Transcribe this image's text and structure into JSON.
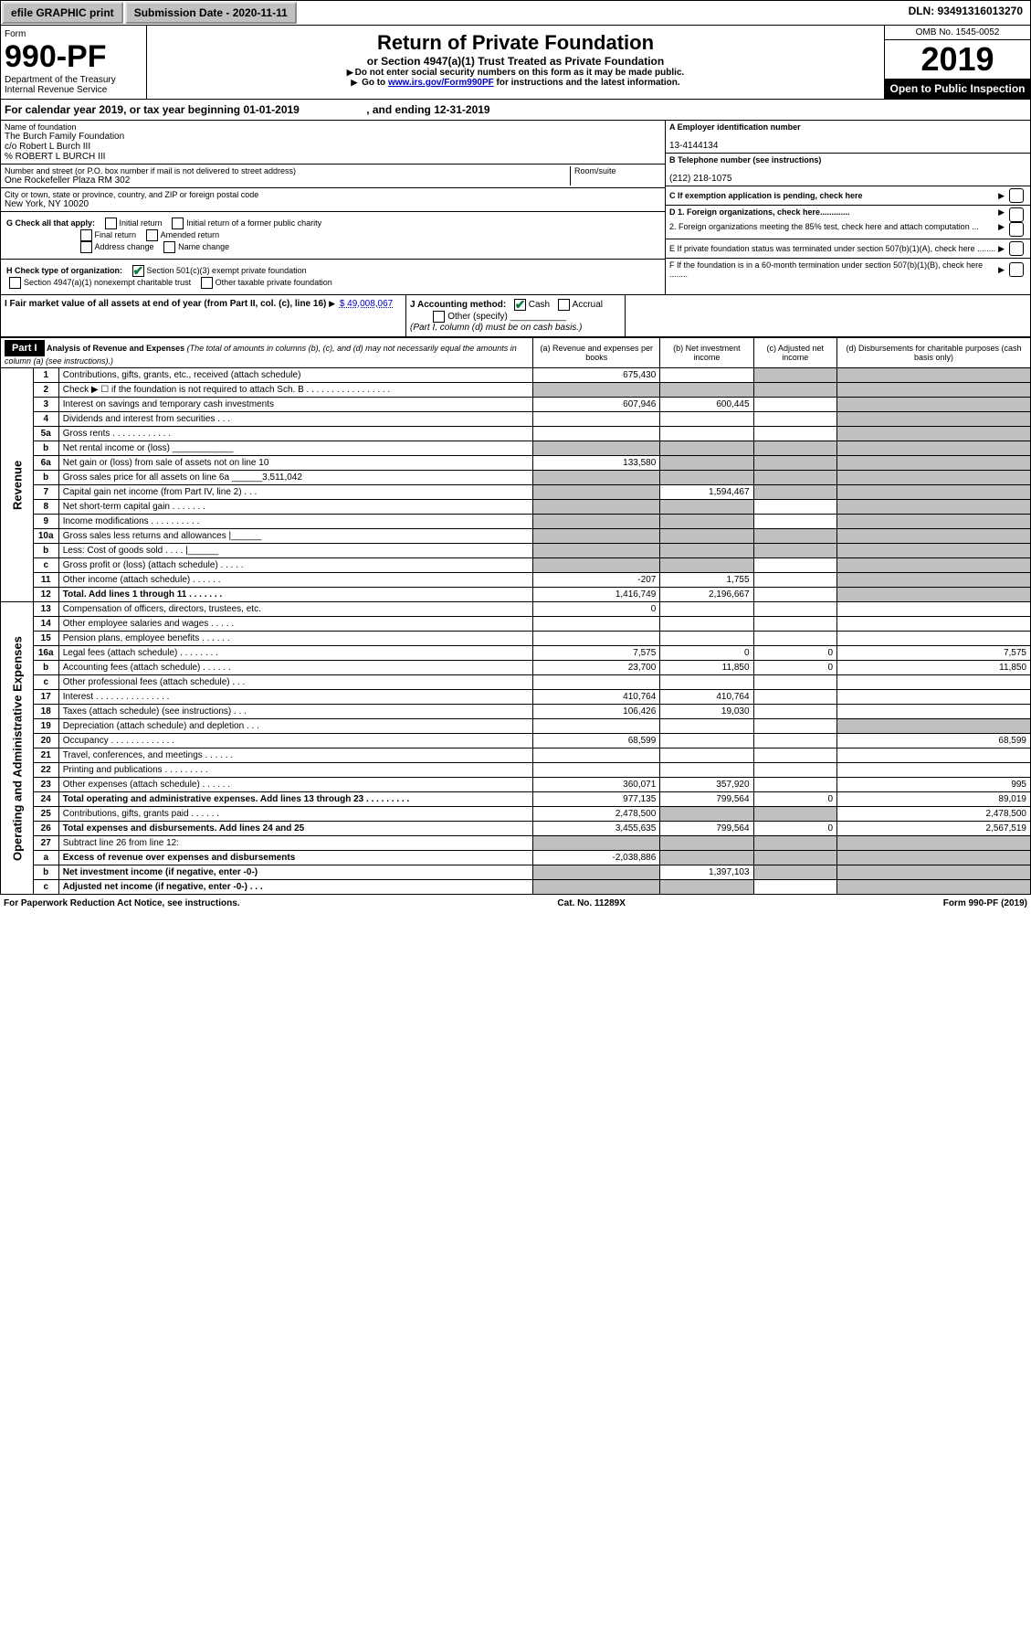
{
  "topbar": {
    "efile": "efile GRAPHIC print",
    "submission": "Submission Date - 2020-11-11",
    "dln": "DLN: 93491316013270"
  },
  "formhead": {
    "form_label": "Form",
    "form_number": "990-PF",
    "dept": "Department of the Treasury",
    "irs": "Internal Revenue Service",
    "title": "Return of Private Foundation",
    "subtitle": "or Section 4947(a)(1) Trust Treated as Private Foundation",
    "note1": "Do not enter social security numbers on this form as it may be made public.",
    "note2_pre": "Go to ",
    "note2_link": "www.irs.gov/Form990PF",
    "note2_post": " for instructions and the latest information.",
    "omb": "OMB No. 1545-0052",
    "year": "2019",
    "open": "Open to Public Inspection"
  },
  "calyear": {
    "pre": "For calendar year 2019, or tax year beginning ",
    "begin": "01-01-2019",
    "mid": " , and ending ",
    "end": "12-31-2019"
  },
  "id": {
    "name_label": "Name of foundation",
    "name1": "The Burch Family Foundation",
    "name2": "c/o Robert L Burch III",
    "name3": "% ROBERT L BURCH III",
    "addr_label": "Number and street (or P.O. box number if mail is not delivered to street address)",
    "addr": "One Rockefeller Plaza RM 302",
    "room_label": "Room/suite",
    "city_label": "City or town, state or province, country, and ZIP or foreign postal code",
    "city": "New York, NY  10020",
    "a_label": "A Employer identification number",
    "a_val": "13-4144134",
    "b_label": "B Telephone number (see instructions)",
    "b_val": "(212) 218-1075",
    "c_label": "C If exemption application is pending, check here",
    "d1": "D 1. Foreign organizations, check here.............",
    "d2": "2. Foreign organizations meeting the 85% test, check here and attach computation ...",
    "e": "E  If private foundation status was terminated under section 507(b)(1)(A), check here ........",
    "f": "F  If the foundation is in a 60-month termination under section 507(b)(1)(B), check here ........"
  },
  "g": {
    "label": "G Check all that apply:",
    "o1": "Initial return",
    "o2": "Initial return of a former public charity",
    "o3": "Final return",
    "o4": "Amended return",
    "o5": "Address change",
    "o6": "Name change"
  },
  "h": {
    "label": "H Check type of organization:",
    "o1": "Section 501(c)(3) exempt private foundation",
    "o2": "Section 4947(a)(1) nonexempt charitable trust",
    "o3": "Other taxable private foundation"
  },
  "i": {
    "label": "I Fair market value of all assets at end of year (from Part II, col. (c), line 16)",
    "val": "$  49,008,067"
  },
  "j": {
    "label": "J Accounting method:",
    "o1": "Cash",
    "o2": "Accrual",
    "o3": "Other (specify)",
    "note": "(Part I, column (d) must be on cash basis.)"
  },
  "part1": {
    "hdr": "Part I",
    "title": "Analysis of Revenue and Expenses",
    "sub": " (The total of amounts in columns (b), (c), and (d) may not necessarily equal the amounts in column (a) (see instructions).)",
    "col_a": "(a)   Revenue and expenses per books",
    "col_b": "(b)   Net investment income",
    "col_c": "(c)   Adjusted net income",
    "col_d": "(d)   Disbursements for charitable purposes (cash basis only)",
    "side_rev": "Revenue",
    "side_exp": "Operating and Administrative Expenses"
  },
  "rows": [
    {
      "n": "1",
      "t": "Contributions, gifts, grants, etc., received (attach schedule)",
      "a": "675,430",
      "b": "",
      "c": "s",
      "d": "s"
    },
    {
      "n": "2",
      "t": "Check ▶ ☐ if the foundation is not required to attach Sch. B   . . . . . . . . . . . . . . . . .",
      "a": "s",
      "b": "s",
      "c": "s",
      "d": "s"
    },
    {
      "n": "3",
      "t": "Interest on savings and temporary cash investments",
      "a": "607,946",
      "b": "600,445",
      "c": "",
      "d": "s"
    },
    {
      "n": "4",
      "t": "Dividends and interest from securities   .  .  .",
      "a": "",
      "b": "",
      "c": "",
      "d": "s"
    },
    {
      "n": "5a",
      "t": "Gross rents   .  .  .  .  .  .  .  .  .  .  .  .",
      "a": "",
      "b": "",
      "c": "",
      "d": "s"
    },
    {
      "n": "b",
      "t": "Net rental income or (loss)   ____________",
      "a": "s",
      "b": "s",
      "c": "s",
      "d": "s"
    },
    {
      "n": "6a",
      "t": "Net gain or (loss) from sale of assets not on line 10",
      "a": "133,580",
      "b": "s",
      "c": "s",
      "d": "s"
    },
    {
      "n": "b",
      "t": "Gross sales price for all assets on line 6a ______3,511,042",
      "a": "s",
      "b": "s",
      "c": "s",
      "d": "s"
    },
    {
      "n": "7",
      "t": "Capital gain net income (from Part IV, line 2)   .  .  .",
      "a": "s",
      "b": "1,594,467",
      "c": "s",
      "d": "s"
    },
    {
      "n": "8",
      "t": "Net short-term capital gain   .  .  .  .  .  .  .",
      "a": "s",
      "b": "s",
      "c": "",
      "d": "s"
    },
    {
      "n": "9",
      "t": "Income modifications   .  .  .  .  .  .  .  .  .  .",
      "a": "s",
      "b": "s",
      "c": "",
      "d": "s"
    },
    {
      "n": "10a",
      "t": "Gross sales less returns and allowances  |______",
      "a": "s",
      "b": "s",
      "c": "s",
      "d": "s"
    },
    {
      "n": "b",
      "t": "Less: Cost of goods sold   .  .  .  .  |______",
      "a": "s",
      "b": "s",
      "c": "s",
      "d": "s"
    },
    {
      "n": "c",
      "t": "Gross profit or (loss) (attach schedule)   .  .  .  .  .",
      "a": "s",
      "b": "s",
      "c": "",
      "d": "s"
    },
    {
      "n": "11",
      "t": "Other income (attach schedule)   .  .  .  .  .  .",
      "a": "-207",
      "b": "1,755",
      "c": "",
      "d": "s"
    },
    {
      "n": "12",
      "t": "Total. Add lines 1 through 11   .  .  .  .  .  .  .",
      "a": "1,416,749",
      "b": "2,196,667",
      "c": "",
      "d": "s",
      "bold": true
    },
    {
      "n": "13",
      "t": "Compensation of officers, directors, trustees, etc.",
      "a": "0",
      "b": "",
      "c": "",
      "d": ""
    },
    {
      "n": "14",
      "t": "Other employee salaries and wages   .  .  .  .  .",
      "a": "",
      "b": "",
      "c": "",
      "d": ""
    },
    {
      "n": "15",
      "t": "Pension plans, employee benefits   .  .  .  .  .  .",
      "a": "",
      "b": "",
      "c": "",
      "d": ""
    },
    {
      "n": "16a",
      "t": "Legal fees (attach schedule)   .  .  .  .  .  .  .  .",
      "a": "7,575",
      "b": "0",
      "c": "0",
      "d": "7,575"
    },
    {
      "n": "b",
      "t": "Accounting fees (attach schedule)   .  .  .  .  .  .",
      "a": "23,700",
      "b": "11,850",
      "c": "0",
      "d": "11,850"
    },
    {
      "n": "c",
      "t": "Other professional fees (attach schedule)   .  .  .",
      "a": "",
      "b": "",
      "c": "",
      "d": ""
    },
    {
      "n": "17",
      "t": "Interest   .  .  .  .  .  .  .  .  .  .  .  .  .  .  .",
      "a": "410,764",
      "b": "410,764",
      "c": "",
      "d": ""
    },
    {
      "n": "18",
      "t": "Taxes (attach schedule) (see instructions)   .  .  .",
      "a": "106,426",
      "b": "19,030",
      "c": "",
      "d": ""
    },
    {
      "n": "19",
      "t": "Depreciation (attach schedule) and depletion   .  .  .",
      "a": "",
      "b": "",
      "c": "",
      "d": "s"
    },
    {
      "n": "20",
      "t": "Occupancy   .  .  .  .  .  .  .  .  .  .  .  .  .",
      "a": "68,599",
      "b": "",
      "c": "",
      "d": "68,599"
    },
    {
      "n": "21",
      "t": "Travel, conferences, and meetings   .  .  .  .  .  .",
      "a": "",
      "b": "",
      "c": "",
      "d": ""
    },
    {
      "n": "22",
      "t": "Printing and publications   .  .  .  .  .  .  .  .  .",
      "a": "",
      "b": "",
      "c": "",
      "d": ""
    },
    {
      "n": "23",
      "t": "Other expenses (attach schedule)   .  .  .  .  .  .",
      "a": "360,071",
      "b": "357,920",
      "c": "",
      "d": "995"
    },
    {
      "n": "24",
      "t": "Total operating and administrative expenses. Add lines 13 through 23   .  .  .  .  .  .  .  .  .",
      "a": "977,135",
      "b": "799,564",
      "c": "0",
      "d": "89,019",
      "bold": true
    },
    {
      "n": "25",
      "t": "Contributions, gifts, grants paid   .  .  .  .  .  .",
      "a": "2,478,500",
      "b": "s",
      "c": "s",
      "d": "2,478,500"
    },
    {
      "n": "26",
      "t": "Total expenses and disbursements. Add lines 24 and 25",
      "a": "3,455,635",
      "b": "799,564",
      "c": "0",
      "d": "2,567,519",
      "bold": true
    },
    {
      "n": "27",
      "t": "Subtract line 26 from line 12:",
      "a": "s",
      "b": "s",
      "c": "s",
      "d": "s"
    },
    {
      "n": "a",
      "t": "Excess of revenue over expenses and disbursements",
      "a": "-2,038,886",
      "b": "s",
      "c": "s",
      "d": "s",
      "bold": true
    },
    {
      "n": "b",
      "t": "Net investment income (if negative, enter -0-)",
      "a": "s",
      "b": "1,397,103",
      "c": "s",
      "d": "s",
      "bold": true
    },
    {
      "n": "c",
      "t": "Adjusted net income (if negative, enter -0-)   .  .  .",
      "a": "s",
      "b": "s",
      "c": "",
      "d": "s",
      "bold": true
    }
  ],
  "footer": {
    "left": "For Paperwork Reduction Act Notice, see instructions.",
    "mid": "Cat. No. 11289X",
    "right": "Form 990-PF (2019)"
  },
  "colors": {
    "shade": "#c0c0c0",
    "link": "#0000cc",
    "check": "#0a7a3a"
  }
}
